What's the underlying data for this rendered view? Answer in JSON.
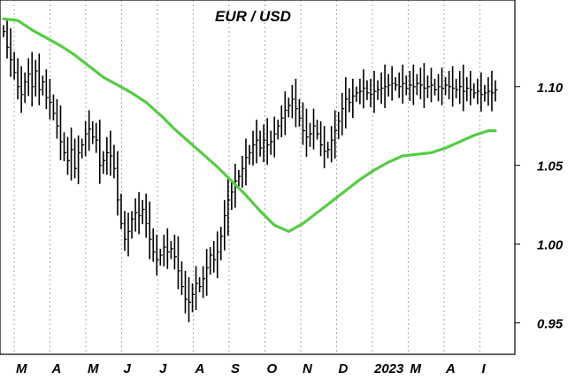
{
  "chart_data": {
    "type": "line",
    "title": "EUR / USD",
    "ylim": [
      0.93,
      1.155
    ],
    "y_axis_side": "right",
    "yticks": [
      0.95,
      1.0,
      1.05,
      1.1
    ],
    "ytick_labels": [
      "0.95",
      "1.00",
      "1.05",
      "1.10"
    ],
    "xtick_labels": [
      "M",
      "A",
      "M",
      "J",
      "J",
      "A",
      "S",
      "O",
      "N",
      "D",
      "2023",
      "M",
      "A",
      "I"
    ],
    "grid": {
      "vertical_dotted": true,
      "horizontal": false
    },
    "colors": {
      "price": "#000000",
      "moving_average": "#55cc44",
      "grid": "#aaaaaa"
    },
    "series": [
      {
        "kind": "price-bars",
        "x": [
          0,
          0.5,
          1,
          1.5,
          2,
          2.5,
          3,
          3.5,
          4,
          4.5,
          5,
          5.5,
          6,
          6.5,
          7,
          7.5,
          8,
          8.5,
          9,
          9.5,
          10,
          10.5,
          11,
          11.5,
          12,
          12.5,
          13,
          13.5,
          14,
          14.5,
          15,
          15.5,
          16,
          16.5,
          17,
          17.5,
          18,
          18.5,
          19,
          19.5,
          20,
          20.5,
          21,
          21.5,
          22,
          22.5,
          23,
          23.5,
          24,
          24.5,
          25,
          25.5,
          26,
          26.5,
          27,
          27.5,
          28,
          28.5,
          29,
          29.5,
          30,
          30.5,
          31,
          31.5,
          32,
          32.5,
          33,
          33.5,
          34,
          34.5,
          35,
          35.5,
          36,
          36.5,
          37,
          37.5,
          38,
          38.5,
          39,
          39.5,
          40,
          40.5,
          41,
          41.5,
          42,
          42.5,
          43,
          43.5,
          44,
          44.5,
          45,
          45.5,
          46,
          46.5,
          47,
          47.5,
          48,
          48.5,
          49,
          49.5,
          50,
          50.5,
          51,
          51.5,
          52,
          52.5,
          53,
          53.5,
          54,
          54.5,
          55,
          55.5,
          56,
          56.5,
          57,
          57.5,
          58,
          58.5,
          59,
          59.5,
          60,
          60.5,
          61,
          61.5,
          62,
          62.5,
          63,
          63.5,
          64,
          64.5,
          65,
          65.5,
          66,
          66.5,
          67,
          67.5,
          68,
          68.5,
          69
        ],
        "values": [
          1.135,
          1.125,
          1.117,
          1.109,
          1.1,
          1.095,
          1.103,
          1.108,
          1.1,
          1.11,
          1.098,
          1.103,
          1.093,
          1.09,
          1.083,
          1.075,
          1.065,
          1.058,
          1.053,
          1.06,
          1.048,
          1.058,
          1.063,
          1.07,
          1.073,
          1.068,
          1.066,
          1.05,
          1.053,
          1.058,
          1.056,
          1.048,
          1.028,
          1.013,
          1.003,
          1.008,
          1.016,
          1.02,
          1.018,
          1.022,
          1.013,
          1.003,
          0.995,
          0.99,
          0.993,
          0.998,
          0.995,
          0.997,
          0.992,
          0.983,
          0.973,
          0.965,
          0.963,
          0.968,
          0.975,
          0.973,
          0.978,
          0.985,
          0.993,
          0.99,
          0.995,
          1.005,
          1.018,
          1.028,
          1.033,
          1.04,
          1.043,
          1.048,
          1.055,
          1.058,
          1.063,
          1.066,
          1.061,
          1.066,
          1.063,
          1.065,
          1.07,
          1.075,
          1.08,
          1.085,
          1.088,
          1.092,
          1.086,
          1.08,
          1.072,
          1.068,
          1.07,
          1.075,
          1.07,
          1.063,
          1.059,
          1.06,
          1.066,
          1.072,
          1.078,
          1.086,
          1.092,
          1.09,
          1.094,
          1.096,
          1.097,
          1.099,
          1.096,
          1.095,
          1.097,
          1.098,
          1.099,
          1.1,
          1.101,
          1.102,
          1.101,
          1.1,
          1.102,
          1.099,
          1.101,
          1.1,
          1.102,
          1.101,
          1.099,
          1.1,
          1.101,
          1.098,
          1.1,
          1.099,
          1.101,
          1.1,
          1.099,
          1.098,
          1.1,
          1.097,
          1.099,
          1.098,
          1.096,
          1.097,
          1.095,
          1.096,
          1.097,
          1.096,
          1.098
        ]
      },
      {
        "kind": "moving-average",
        "x": [
          0,
          2,
          4,
          6,
          8,
          10,
          12,
          14,
          16,
          18,
          20,
          22,
          24,
          26,
          28,
          30,
          32,
          34,
          36,
          38,
          40,
          42,
          44,
          46,
          48,
          50,
          52,
          54,
          56,
          58,
          60,
          62,
          64,
          66,
          68,
          69
        ],
        "values": [
          1.143,
          1.142,
          1.136,
          1.131,
          1.126,
          1.12,
          1.113,
          1.106,
          1.101,
          1.096,
          1.09,
          1.082,
          1.073,
          1.065,
          1.057,
          1.049,
          1.04,
          1.031,
          1.021,
          1.012,
          1.008,
          1.013,
          1.02,
          1.027,
          1.034,
          1.041,
          1.047,
          1.052,
          1.056,
          1.057,
          1.058,
          1.061,
          1.065,
          1.069,
          1.072,
          1.072
        ]
      }
    ]
  }
}
